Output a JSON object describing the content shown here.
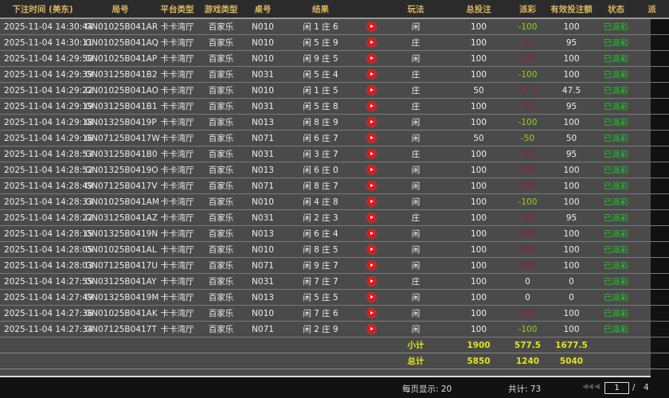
{
  "table": {
    "headers": [
      "下注时间 (美东)",
      "局号",
      "平台类型",
      "游戏类型",
      "桌号",
      "结果",
      "",
      "玩法",
      "总投注",
      "派彩",
      "有效投注额",
      "状态",
      "派"
    ],
    "rows": [
      {
        "time": "2025-11-04 14:30:44",
        "round": "GN01025B041AR",
        "platform": "卡卡湾厅",
        "game": "百家乐",
        "table": "N010",
        "result": "闲 1 庄 6",
        "play": "闲",
        "bet": "100",
        "payout": "-100",
        "valid": "100",
        "status": "已派彩"
      },
      {
        "time": "2025-11-04 14:30:11",
        "round": "GN01025B041AQ",
        "platform": "卡卡湾厅",
        "game": "百家乐",
        "table": "N010",
        "result": "闲 5 庄 9",
        "play": "庄",
        "bet": "100",
        "payout": "95",
        "valid": "95",
        "status": "已派彩"
      },
      {
        "time": "2025-11-04 14:29:50",
        "round": "GN01025B041AP",
        "platform": "卡卡湾厅",
        "game": "百家乐",
        "table": "N010",
        "result": "闲 9 庄 5",
        "play": "闲",
        "bet": "100",
        "payout": "100",
        "valid": "100",
        "status": "已派彩"
      },
      {
        "time": "2025-11-04 14:29:39",
        "round": "GN03125B041B2",
        "platform": "卡卡湾厅",
        "game": "百家乐",
        "table": "N031",
        "result": "闲 5 庄 4",
        "play": "庄",
        "bet": "100",
        "payout": "-100",
        "valid": "100",
        "status": "已派彩"
      },
      {
        "time": "2025-11-04 14:29:22",
        "round": "GN01025B041AO",
        "platform": "卡卡湾厅",
        "game": "百家乐",
        "table": "N010",
        "result": "闲 1 庄 5",
        "play": "庄",
        "bet": "50",
        "payout": "47.5",
        "valid": "47.5",
        "status": "已派彩"
      },
      {
        "time": "2025-11-04 14:29:19",
        "round": "GN03125B041B1",
        "platform": "卡卡湾厅",
        "game": "百家乐",
        "table": "N031",
        "result": "闲 5 庄 8",
        "play": "庄",
        "bet": "100",
        "payout": "95",
        "valid": "95",
        "status": "已派彩"
      },
      {
        "time": "2025-11-04 14:29:18",
        "round": "GN01325B0419P",
        "platform": "卡卡湾厅",
        "game": "百家乐",
        "table": "N013",
        "result": "闲 8 庄 9",
        "play": "闲",
        "bet": "100",
        "payout": "-100",
        "valid": "100",
        "status": "已派彩"
      },
      {
        "time": "2025-11-04 14:29:16",
        "round": "GN07125B0417W",
        "platform": "卡卡湾厅",
        "game": "百家乐",
        "table": "N071",
        "result": "闲 6 庄 7",
        "play": "闲",
        "bet": "50",
        "payout": "-50",
        "valid": "50",
        "status": "已派彩"
      },
      {
        "time": "2025-11-04 14:28:53",
        "round": "GN03125B041B0",
        "platform": "卡卡湾厅",
        "game": "百家乐",
        "table": "N031",
        "result": "闲 3 庄 7",
        "play": "庄",
        "bet": "100",
        "payout": "95",
        "valid": "95",
        "status": "已派彩"
      },
      {
        "time": "2025-11-04 14:28:52",
        "round": "GN01325B0419O",
        "platform": "卡卡湾厅",
        "game": "百家乐",
        "table": "N013",
        "result": "闲 6 庄 0",
        "play": "闲",
        "bet": "100",
        "payout": "100",
        "valid": "100",
        "status": "已派彩"
      },
      {
        "time": "2025-11-04 14:28:49",
        "round": "GN07125B0417V",
        "platform": "卡卡湾厅",
        "game": "百家乐",
        "table": "N071",
        "result": "闲 8 庄 7",
        "play": "闲",
        "bet": "100",
        "payout": "100",
        "valid": "100",
        "status": "已派彩"
      },
      {
        "time": "2025-11-04 14:28:33",
        "round": "GN01025B041AM",
        "platform": "卡卡湾厅",
        "game": "百家乐",
        "table": "N010",
        "result": "闲 4 庄 8",
        "play": "闲",
        "bet": "100",
        "payout": "-100",
        "valid": "100",
        "status": "已派彩"
      },
      {
        "time": "2025-11-04 14:28:22",
        "round": "GN03125B041AZ",
        "platform": "卡卡湾厅",
        "game": "百家乐",
        "table": "N031",
        "result": "闲 2 庄 3",
        "play": "庄",
        "bet": "100",
        "payout": "95",
        "valid": "95",
        "status": "已派彩"
      },
      {
        "time": "2025-11-04 14:28:15",
        "round": "GN01325B0419N",
        "platform": "卡卡湾厅",
        "game": "百家乐",
        "table": "N013",
        "result": "闲 6 庄 4",
        "play": "闲",
        "bet": "100",
        "payout": "100",
        "valid": "100",
        "status": "已派彩"
      },
      {
        "time": "2025-11-04 14:28:05",
        "round": "GN01025B041AL",
        "platform": "卡卡湾厅",
        "game": "百家乐",
        "table": "N010",
        "result": "闲 8 庄 5",
        "play": "闲",
        "bet": "100",
        "payout": "100",
        "valid": "100",
        "status": "已派彩"
      },
      {
        "time": "2025-11-04 14:28:03",
        "round": "GN07125B0417U",
        "platform": "卡卡湾厅",
        "game": "百家乐",
        "table": "N071",
        "result": "闲 9 庄 7",
        "play": "闲",
        "bet": "100",
        "payout": "100",
        "valid": "100",
        "status": "已派彩"
      },
      {
        "time": "2025-11-04 14:27:55",
        "round": "GN03125B041AY",
        "platform": "卡卡湾厅",
        "game": "百家乐",
        "table": "N031",
        "result": "闲 7 庄 7",
        "play": "庄",
        "bet": "100",
        "payout": "0",
        "valid": "0",
        "status": "已派彩"
      },
      {
        "time": "2025-11-04 14:27:49",
        "round": "GN01325B0419M",
        "platform": "卡卡湾厅",
        "game": "百家乐",
        "table": "N013",
        "result": "闲 5 庄 5",
        "play": "闲",
        "bet": "100",
        "payout": "0",
        "valid": "0",
        "status": "已派彩"
      },
      {
        "time": "2025-11-04 14:27:36",
        "round": "GN01025B041AK",
        "platform": "卡卡湾厅",
        "game": "百家乐",
        "table": "N010",
        "result": "闲 7 庄 6",
        "play": "闲",
        "bet": "100",
        "payout": "100",
        "valid": "100",
        "status": "已派彩"
      },
      {
        "time": "2025-11-04 14:27:34",
        "round": "GN07125B0417T",
        "platform": "卡卡湾厅",
        "game": "百家乐",
        "table": "N071",
        "result": "闲 2 庄 9",
        "play": "闲",
        "bet": "100",
        "payout": "-100",
        "valid": "100",
        "status": "已派彩"
      }
    ],
    "subtotal": {
      "label": "小计",
      "bet": "1900",
      "payout": "577.5",
      "valid": "1677.5"
    },
    "total": {
      "label": "总计",
      "bet": "5850",
      "payout": "1240",
      "valid": "5040"
    }
  },
  "footer": {
    "page_size": "每页显示: 20",
    "total_count": "共计: 73",
    "current_page": "1",
    "page_sep": "/",
    "total_pages": "4"
  },
  "colors": {
    "header_text": "#d8b560",
    "loss": "#8fd21b",
    "win": "#9a1f2e",
    "status": "#1fcf1f",
    "sum": "#e2e41a"
  }
}
